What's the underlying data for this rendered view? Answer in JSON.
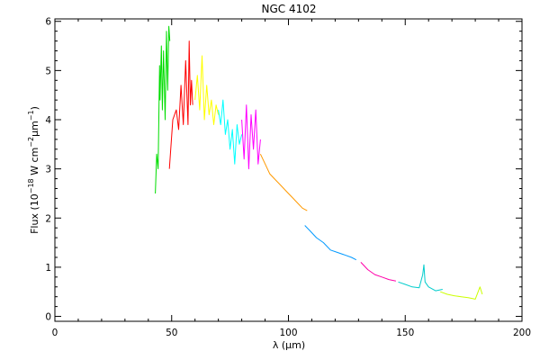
{
  "chart_data": {
    "type": "line",
    "title": "NGC 4102",
    "xlabel": "λ (μm)",
    "ylabel": "Flux (10^-18 W cm^-2 μm^-1)",
    "ylabel_parts": {
      "prefix": "Flux (10",
      "exp1": "−18",
      "mid": " W cm",
      "exp2": "−2",
      "mu": "μ",
      "mid2": "m",
      "exp3": "−1",
      "suffix": ")"
    },
    "xlim": [
      0,
      200
    ],
    "ylim": [
      -0.1,
      6.05
    ],
    "xticks": [
      0,
      50,
      100,
      150,
      200
    ],
    "xtick_labels": [
      "0",
      "50",
      "100",
      "150",
      "200"
    ],
    "yticks": [
      0,
      1,
      2,
      3,
      4,
      5,
      6
    ],
    "ytick_labels": [
      "0",
      "1",
      "2",
      "3",
      "4",
      "5",
      "6"
    ],
    "grid": false,
    "series": [
      {
        "color": "#00dd00",
        "x": [
          43.0,
          43.6,
          44.2,
          44.8,
          45.0,
          45.6,
          46.0,
          46.5,
          47.2,
          47.8,
          48.3,
          48.8,
          49.2
        ],
        "y": [
          2.5,
          3.3,
          3.0,
          5.1,
          4.4,
          5.5,
          4.2,
          5.4,
          4.0,
          5.8,
          4.6,
          5.9,
          5.6
        ]
      },
      {
        "color": "#ff0000",
        "x": [
          49.0,
          50.5,
          52.0,
          53.0,
          54.0,
          55.0,
          56.0,
          57.0,
          57.5,
          58.0,
          58.5,
          59.0
        ],
        "y": [
          3.0,
          4.0,
          4.2,
          3.8,
          4.7,
          3.9,
          5.2,
          3.9,
          5.6,
          4.3,
          4.8,
          4.3
        ]
      },
      {
        "color": "#ffff00",
        "x": [
          60.0,
          61.0,
          62.0,
          63.0,
          64.0,
          65.0,
          66.0,
          67.0,
          68.0,
          69.0,
          70.0
        ],
        "y": [
          4.4,
          4.9,
          4.2,
          5.3,
          4.0,
          4.7,
          4.1,
          4.4,
          3.9,
          4.3,
          4.1
        ]
      },
      {
        "color": "#00ffff",
        "x": [
          70.0,
          71.0,
          72.0,
          73.0,
          74.0,
          75.0,
          76.0,
          77.0,
          78.0,
          79.0,
          80.0
        ],
        "y": [
          4.2,
          3.9,
          4.4,
          3.7,
          4.0,
          3.4,
          3.8,
          3.1,
          3.9,
          3.5,
          3.7
        ]
      },
      {
        "color": "#ff00ff",
        "x": [
          80.0,
          81.0,
          82.0,
          83.0,
          84.0,
          85.0,
          86.0,
          87.0,
          88.0
        ],
        "y": [
          4.0,
          3.2,
          4.3,
          3.0,
          4.1,
          3.4,
          4.2,
          3.1,
          3.6
        ]
      },
      {
        "color": "#ff9900",
        "x": [
          88.0,
          90.0,
          92.0,
          94.0,
          96.0,
          98.0,
          100.0,
          102.0,
          104.0,
          106.0,
          108.0
        ],
        "y": [
          3.3,
          3.1,
          2.9,
          2.8,
          2.7,
          2.6,
          2.5,
          2.4,
          2.3,
          2.2,
          2.15
        ]
      },
      {
        "color": "#0099ff",
        "x": [
          107.0,
          109.0,
          112.0,
          115.0,
          118.0,
          121.0,
          124.0,
          127.0,
          129.0
        ],
        "y": [
          1.85,
          1.75,
          1.6,
          1.5,
          1.35,
          1.3,
          1.25,
          1.2,
          1.15
        ]
      },
      {
        "color": "#ff00aa",
        "x": [
          131.0,
          134.0,
          137.0,
          140.0,
          143.0,
          146.0
        ],
        "y": [
          1.1,
          0.95,
          0.85,
          0.8,
          0.75,
          0.72
        ]
      },
      {
        "color": "#00cccc",
        "x": [
          147.0,
          150.0,
          153.0,
          156.0,
          157.5,
          158.0,
          158.5,
          160.0,
          163.0,
          166.0
        ],
        "y": [
          0.7,
          0.65,
          0.6,
          0.58,
          0.85,
          1.05,
          0.7,
          0.6,
          0.52,
          0.55
        ]
      },
      {
        "color": "#ccff00",
        "x": [
          165.0,
          168.0,
          171.0,
          174.0,
          177.0,
          180.0,
          182.0,
          183.0
        ],
        "y": [
          0.5,
          0.45,
          0.42,
          0.4,
          0.38,
          0.35,
          0.6,
          0.45
        ]
      }
    ]
  }
}
